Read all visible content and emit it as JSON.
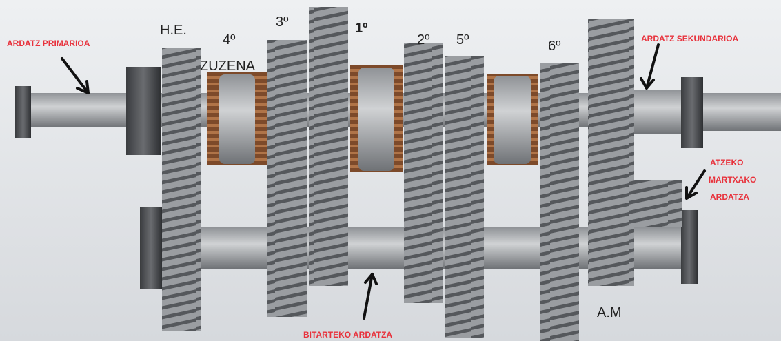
{
  "labels": {
    "primary_shaft": "ARDATZ PRIMARIOA",
    "secondary_shaft": "ARDATZ SEKUNDARIOA",
    "reverse_shaft": [
      "ATZEKO",
      "MARTXAKO",
      "ARDATZA"
    ],
    "intermediate_shaft": "BITARTEKO ARDATZA",
    "gears": {
      "he": "H.E.",
      "fourth": "4º",
      "direct": "ZUZENA",
      "third": "3º",
      "first": "1º",
      "second": "2º",
      "fifth": "5º",
      "sixth": "6º",
      "reverse": "A.M"
    }
  }
}
